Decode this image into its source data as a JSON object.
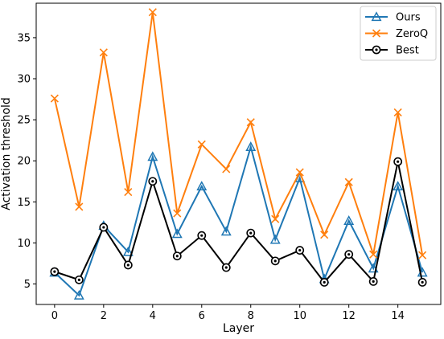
{
  "chart_data": {
    "type": "line",
    "xlabel": "Layer",
    "ylabel": "Activation threshold",
    "xlim": [
      -0.75,
      15.75
    ],
    "ylim": [
      2.5,
      39.2
    ],
    "xticks": [
      0,
      2,
      4,
      6,
      8,
      10,
      12,
      14
    ],
    "yticks": [
      5,
      10,
      15,
      20,
      25,
      30,
      35
    ],
    "grid": false,
    "legend_position": "top-right",
    "x": [
      0,
      1,
      2,
      3,
      4,
      5,
      6,
      7,
      8,
      9,
      10,
      11,
      12,
      13,
      14,
      15
    ],
    "series": [
      {
        "name": "Ours",
        "color": "#1f77b4",
        "marker": "triangle",
        "values": [
          6.4,
          3.6,
          12.1,
          8.9,
          20.5,
          11.1,
          16.9,
          11.4,
          21.7,
          10.4,
          17.9,
          5.6,
          12.7,
          6.9,
          16.9,
          6.4
        ]
      },
      {
        "name": "ZeroQ",
        "color": "#ff7f0e",
        "marker": "x",
        "values": [
          27.6,
          14.4,
          33.2,
          16.2,
          38.1,
          13.6,
          22.0,
          19.0,
          24.7,
          12.9,
          18.6,
          11.0,
          17.4,
          8.6,
          25.9,
          8.5
        ]
      },
      {
        "name": "Best",
        "color": "#000000",
        "marker": "circle-dot",
        "values": [
          6.5,
          5.5,
          11.9,
          7.3,
          17.5,
          8.4,
          10.9,
          7.0,
          11.2,
          7.8,
          9.1,
          5.2,
          8.6,
          5.3,
          19.9,
          5.2
        ]
      }
    ]
  }
}
